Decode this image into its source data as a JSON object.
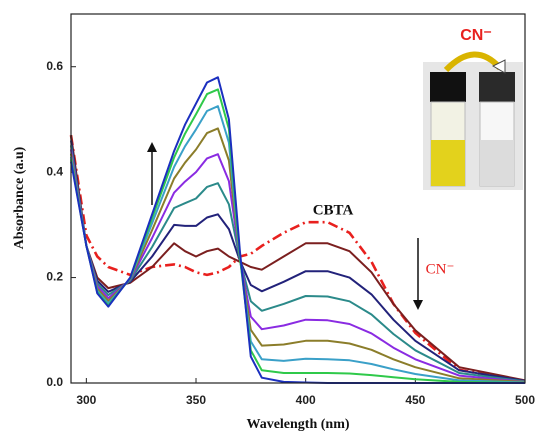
{
  "chart_data": {
    "type": "line",
    "x_label": "Wavelength (nm)",
    "y_label": "Absorbance (a.u)",
    "xlim": [
      293,
      500
    ],
    "xticks": [
      300,
      350,
      400,
      450,
      500
    ],
    "ylim": [
      0,
      0.7
    ],
    "yticks": [
      {
        "value": 0,
        "label": "0.0"
      },
      0.2,
      0.4,
      0.6
    ],
    "x": [
      293,
      300,
      305,
      310,
      320,
      330,
      340,
      345,
      350,
      355,
      360,
      365,
      370,
      375,
      380,
      390,
      400,
      410,
      420,
      430,
      440,
      450,
      470,
      500
    ],
    "series": [
      {
        "color": "#e8201e",
        "style": "dash-dot",
        "values": [
          0.47,
          0.28,
          0.24,
          0.22,
          0.205,
          0.22,
          0.225,
          0.22,
          0.21,
          0.205,
          0.21,
          0.22,
          0.24,
          0.245,
          0.26,
          0.285,
          0.305,
          0.305,
          0.285,
          0.23,
          0.15,
          0.095,
          0.025,
          0.003
        ]
      },
      {
        "color": "#7b1f1f",
        "values": [
          0.47,
          0.26,
          0.2,
          0.18,
          0.19,
          0.22,
          0.265,
          0.25,
          0.24,
          0.25,
          0.255,
          0.24,
          0.23,
          0.22,
          0.215,
          0.24,
          0.265,
          0.265,
          0.25,
          0.21,
          0.15,
          0.1,
          0.03,
          0.005
        ]
      },
      {
        "color": "#22227a",
        "values": [
          0.46,
          0.26,
          0.194,
          0.173,
          0.192,
          0.24,
          0.3,
          0.298,
          0.298,
          0.314,
          0.32,
          0.292,
          0.232,
          0.186,
          0.174,
          0.192,
          0.212,
          0.212,
          0.2,
          0.168,
          0.12,
          0.08,
          0.024,
          0.004
        ]
      },
      {
        "color": "#2b8a8a",
        "values": [
          0.451,
          0.26,
          0.189,
          0.167,
          0.194,
          0.258,
          0.332,
          0.341,
          0.35,
          0.372,
          0.379,
          0.339,
          0.234,
          0.155,
          0.137,
          0.15,
          0.165,
          0.164,
          0.155,
          0.13,
          0.093,
          0.062,
          0.019,
          0.003
        ]
      },
      {
        "color": "#8a2be2",
        "values": [
          0.443,
          0.26,
          0.184,
          0.161,
          0.196,
          0.275,
          0.361,
          0.382,
          0.4,
          0.426,
          0.434,
          0.383,
          0.236,
          0.126,
          0.102,
          0.109,
          0.12,
          0.119,
          0.112,
          0.094,
          0.067,
          0.045,
          0.014,
          0.002
        ]
      },
      {
        "color": "#8b7d2a",
        "values": [
          0.435,
          0.26,
          0.179,
          0.156,
          0.197,
          0.29,
          0.388,
          0.418,
          0.443,
          0.474,
          0.483,
          0.422,
          0.237,
          0.101,
          0.071,
          0.073,
          0.08,
          0.08,
          0.075,
          0.063,
          0.045,
          0.03,
          0.009,
          0.002
        ]
      },
      {
        "color": "#3aa0c8",
        "values": [
          0.429,
          0.26,
          0.175,
          0.151,
          0.198,
          0.303,
          0.41,
          0.449,
          0.481,
          0.516,
          0.525,
          0.456,
          0.238,
          0.079,
          0.045,
          0.042,
          0.046,
          0.045,
          0.043,
          0.036,
          0.026,
          0.017,
          0.005,
          0.001
        ]
      },
      {
        "color": "#2fc94a",
        "values": [
          0.424,
          0.26,
          0.172,
          0.147,
          0.199,
          0.313,
          0.428,
          0.473,
          0.51,
          0.548,
          0.557,
          0.482,
          0.239,
          0.062,
          0.024,
          0.019,
          0.019,
          0.019,
          0.018,
          0.015,
          0.011,
          0.007,
          0.002,
          0
        ]
      },
      {
        "color": "#1b2fbf",
        "values": [
          0.42,
          0.26,
          0.17,
          0.145,
          0.2,
          0.32,
          0.44,
          0.49,
          0.53,
          0.57,
          0.58,
          0.5,
          0.25,
          0.05,
          0.01,
          0.002,
          0.001,
          0,
          0,
          0,
          0,
          0,
          0,
          0
        ]
      }
    ],
    "annotations": [
      "CBTA",
      "CN⁻",
      "CN⁻"
    ]
  }
}
